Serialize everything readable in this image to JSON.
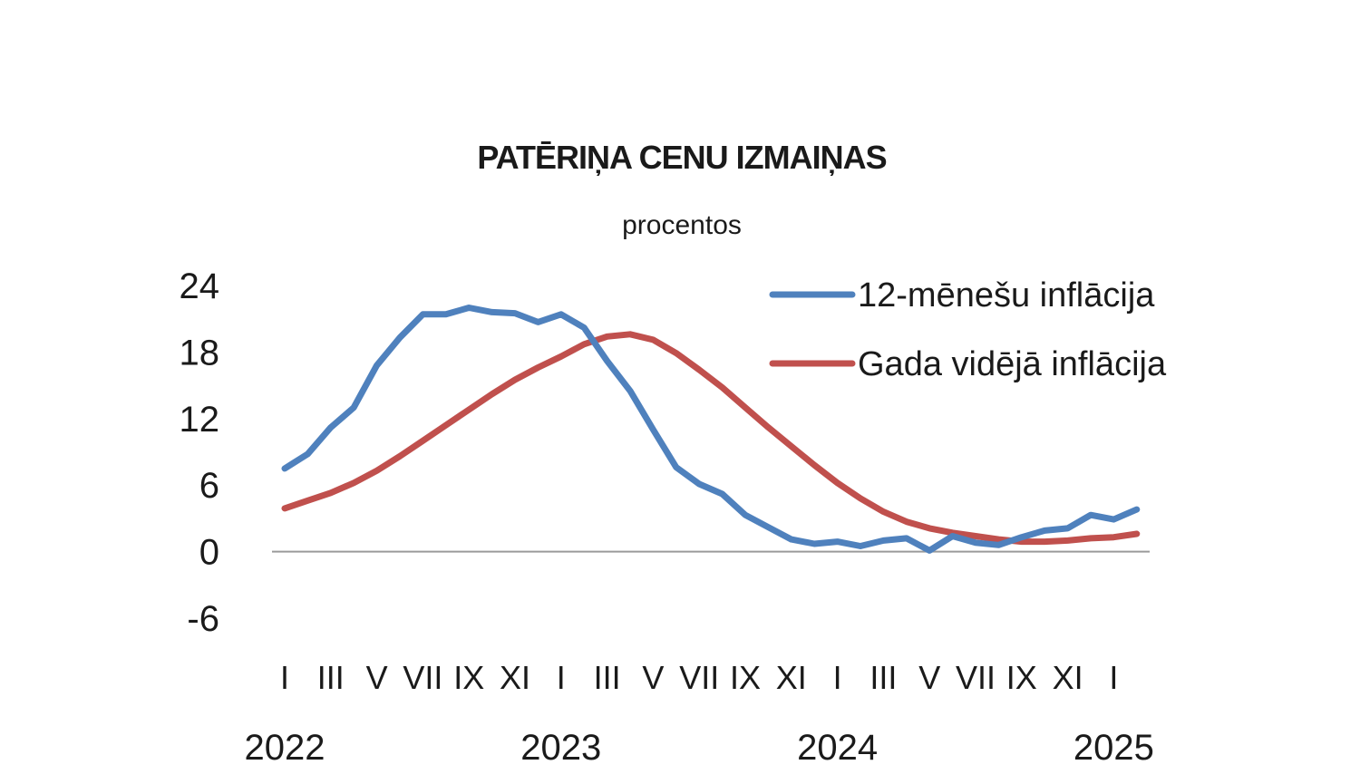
{
  "chart_data": {
    "type": "line",
    "title": "PATĒRIŅA CENU IZMAIŅAS",
    "subtitle": "procentos",
    "xlabel": "",
    "ylabel": "",
    "ylim": [
      -6,
      24
    ],
    "y_ticks": [
      "24",
      "18",
      "12",
      "6",
      "0",
      "-6"
    ],
    "y_tick_values": [
      24,
      18,
      12,
      6,
      0,
      -6
    ],
    "grid": false,
    "legend_position": "top-right",
    "x_start": "2022-01",
    "x_end": "2025-02",
    "month_ticks": [
      {
        "label": "I",
        "month": 0
      },
      {
        "label": "III",
        "month": 2
      },
      {
        "label": "V",
        "month": 4
      },
      {
        "label": "VII",
        "month": 6
      },
      {
        "label": "IX",
        "month": 8
      },
      {
        "label": "XI",
        "month": 10
      },
      {
        "label": "I",
        "month": 12
      },
      {
        "label": "III",
        "month": 14
      },
      {
        "label": "V",
        "month": 16
      },
      {
        "label": "VII",
        "month": 18
      },
      {
        "label": "IX",
        "month": 20
      },
      {
        "label": "XI",
        "month": 22
      },
      {
        "label": "I",
        "month": 24
      },
      {
        "label": "III",
        "month": 26
      },
      {
        "label": "V",
        "month": 28
      },
      {
        "label": "VII",
        "month": 30
      },
      {
        "label": "IX",
        "month": 32
      },
      {
        "label": "XI",
        "month": 34
      },
      {
        "label": "I",
        "month": 36
      }
    ],
    "year_labels": [
      {
        "label": "2022",
        "month": 0
      },
      {
        "label": "2023",
        "month": 12
      },
      {
        "label": "2024",
        "month": 24
      },
      {
        "label": "2025",
        "month": 36
      }
    ],
    "series": [
      {
        "name": "12-mēnešu inflācija",
        "color": "#4f81bd",
        "values": [
          7.5,
          8.8,
          11.2,
          13.0,
          16.8,
          19.3,
          21.4,
          21.4,
          22.0,
          21.6,
          21.5,
          20.7,
          21.4,
          20.2,
          17.2,
          14.5,
          11.0,
          7.6,
          6.1,
          5.2,
          3.3,
          2.2,
          1.1,
          0.7,
          0.9,
          0.5,
          1.0,
          1.2,
          0.1,
          1.4,
          0.8,
          0.6,
          1.3,
          1.9,
          2.1,
          3.3,
          2.9,
          3.8
        ]
      },
      {
        "name": "Gada vidējā inflācija",
        "color": "#c0504d",
        "values": [
          3.9,
          4.6,
          5.3,
          6.2,
          7.3,
          8.6,
          10.0,
          11.4,
          12.8,
          14.2,
          15.5,
          16.6,
          17.6,
          18.7,
          19.4,
          19.6,
          19.1,
          17.9,
          16.4,
          14.8,
          13.0,
          11.2,
          9.5,
          7.8,
          6.2,
          4.8,
          3.6,
          2.7,
          2.1,
          1.7,
          1.4,
          1.1,
          0.9,
          0.9,
          1.0,
          1.2,
          1.3,
          1.6
        ]
      }
    ]
  }
}
